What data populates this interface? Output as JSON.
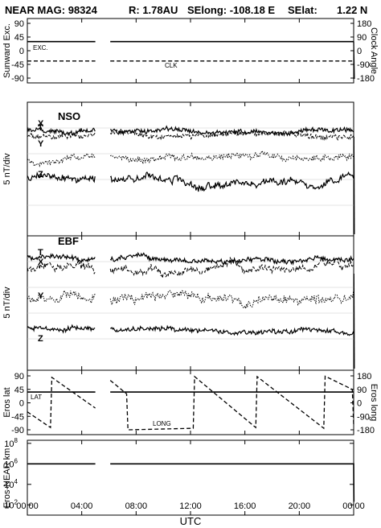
{
  "header": {
    "left": "NEAR MAG: 98324",
    "r": "R: 1.78AU",
    "selong": "SElong: -108.18 E",
    "selat": "SElat:",
    "selat_val": "1.22 N"
  },
  "chart_data": [
    {
      "type": "line",
      "panel": "sunward",
      "ylabel": "Sunward Exc.",
      "ylabel_right": "Clock Angle",
      "yticks": [
        "90",
        "45",
        "0",
        "-45",
        "-90"
      ],
      "yticks_right": [
        "180",
        "90",
        "0",
        "-90",
        "-180"
      ],
      "ylim": [
        -90,
        90
      ],
      "annotations": [
        "EXC.",
        "CLK"
      ],
      "series": [
        {
          "name": "EXC.",
          "style": "solid",
          "segments": [
            [
              [
                0.0,
                30
              ],
              [
                5.0,
                30
              ]
            ],
            [
              [
                6.1,
                30
              ],
              [
                24.0,
                30
              ]
            ]
          ]
        },
        {
          "name": "CLK",
          "style": "dashed",
          "segments": [
            [
              [
                0.0,
                -34
              ],
              [
                5.0,
                -34
              ]
            ],
            [
              [
                6.1,
                -34
              ],
              [
                24.0,
                -34
              ]
            ]
          ]
        }
      ]
    },
    {
      "type": "line",
      "panel": "NSO",
      "title": "NSO",
      "ylabel": "5 nT/div",
      "component_labels": [
        "T",
        "X",
        "Y",
        "Z"
      ]
    },
    {
      "type": "line",
      "panel": "EBF",
      "title": "EBF",
      "ylabel": "5 nT/div",
      "component_labels": [
        "T",
        "X",
        "Y",
        "Z"
      ]
    },
    {
      "type": "line",
      "panel": "eros",
      "ylabel": "Eros lat",
      "ylabel_right": "Eros long",
      "yticks": [
        "90",
        "45",
        "0",
        "-45",
        "-90"
      ],
      "yticks_right": [
        "180",
        "90",
        "0",
        "-90",
        "-180"
      ],
      "ylim": [
        -90,
        90
      ],
      "annotations": [
        "LAT",
        "LONG"
      ],
      "series": [
        {
          "name": "LAT",
          "style": "solid",
          "segments": [
            [
              [
                0.0,
                36
              ],
              [
                5.0,
                36
              ]
            ],
            [
              [
                6.1,
                36
              ],
              [
                24.0,
                36
              ]
            ]
          ]
        },
        {
          "name": "LONG",
          "style": "dashed",
          "unit": "deg",
          "segments": [
            [
              [
                0.0,
                -60
              ],
              [
                1.7,
                -165
              ],
              [
                1.8,
                170
              ],
              [
                5.0,
                -35
              ]
            ],
            [
              [
                6.1,
                150
              ],
              [
                7.3,
                60
              ],
              [
                7.4,
                -180
              ],
              [
                12.2,
                -170
              ],
              [
                12.3,
                175
              ],
              [
                16.8,
                -165
              ],
              [
                16.9,
                175
              ],
              [
                21.8,
                -170
              ],
              [
                21.9,
                178
              ],
              [
                23.9,
                90
              ],
              [
                24.0,
                -150
              ]
            ]
          ]
        }
      ]
    },
    {
      "type": "line",
      "panel": "distance",
      "ylabel": "Eros-NEAR km",
      "yscale": "log",
      "yticks": [
        "10^8",
        "10^6",
        "10^4",
        "10^2"
      ],
      "ylim_exp": [
        1,
        8.3
      ],
      "series": [
        {
          "name": "",
          "style": "solid",
          "segments": [
            [
              [
                0.0,
                6.0
              ],
              [
                5.0,
                6.0
              ]
            ],
            [
              [
                6.1,
                6.0
              ],
              [
                24.0,
                6.0
              ],
              [
                24.02,
                2.3
              ]
            ]
          ]
        }
      ]
    }
  ],
  "xaxis": {
    "label": "UTC",
    "ticks": [
      "00:00",
      "04:00",
      "08:00",
      "12:00",
      "16:00",
      "20:00",
      "00:00"
    ],
    "range_hours": [
      0,
      24
    ]
  }
}
